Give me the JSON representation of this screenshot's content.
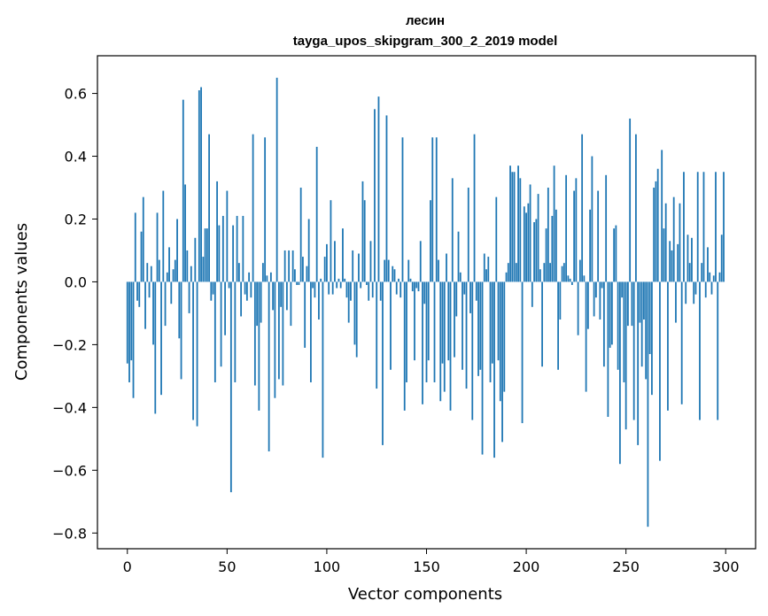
{
  "chart_data": {
    "type": "bar",
    "title": "лесин",
    "subtitle": "tayga_upos_skipgram_300_2_2019 model",
    "xlabel": "Vector components",
    "ylabel": "Components values",
    "xlim": [
      -15,
      315
    ],
    "ylim": [
      -0.85,
      0.72
    ],
    "x_ticks": [
      0,
      50,
      100,
      150,
      200,
      250,
      300
    ],
    "y_ticks": [
      -0.8,
      -0.6,
      -0.4,
      -0.2,
      0.0,
      0.2,
      0.4,
      0.6
    ],
    "bar_color": "#1f77b4",
    "values": [
      -0.26,
      -0.32,
      -0.25,
      -0.37,
      0.22,
      -0.06,
      -0.08,
      0.16,
      0.27,
      -0.15,
      0.06,
      -0.05,
      0.05,
      -0.2,
      -0.42,
      0.22,
      0.07,
      -0.36,
      0.29,
      -0.14,
      0.03,
      0.11,
      -0.07,
      0.04,
      0.07,
      0.2,
      -0.18,
      -0.31,
      0.58,
      0.31,
      0.1,
      -0.1,
      0.05,
      -0.44,
      0.14,
      -0.46,
      0.61,
      0.62,
      0.08,
      0.17,
      0.17,
      0.47,
      -0.06,
      -0.04,
      -0.32,
      0.32,
      0.18,
      -0.27,
      0.21,
      -0.17,
      0.29,
      -0.02,
      -0.67,
      0.18,
      -0.32,
      0.21,
      0.06,
      -0.11,
      0.21,
      -0.04,
      -0.06,
      0.03,
      -0.05,
      0.47,
      -0.33,
      -0.14,
      -0.41,
      -0.13,
      0.06,
      0.46,
      0.02,
      -0.54,
      0.03,
      -0.09,
      -0.37,
      0.65,
      -0.31,
      -0.08,
      -0.33,
      0.1,
      -0.09,
      0.1,
      -0.14,
      0.1,
      0.04,
      -0.01,
      -0.01,
      0.3,
      0.08,
      -0.21,
      0.05,
      0.2,
      -0.32,
      -0.02,
      -0.05,
      0.43,
      -0.12,
      0.01,
      -0.56,
      0.08,
      0.12,
      -0.04,
      0.26,
      -0.04,
      0.13,
      -0.02,
      0.01,
      -0.02,
      0.17,
      0.01,
      -0.05,
      -0.13,
      -0.06,
      0.1,
      -0.2,
      -0.24,
      0.09,
      -0.02,
      0.32,
      0.26,
      -0.01,
      -0.06,
      0.13,
      -0.05,
      0.55,
      -0.34,
      0.59,
      -0.06,
      -0.52,
      0.07,
      0.53,
      0.07,
      -0.28,
      0.05,
      0.04,
      -0.04,
      0.01,
      -0.05,
      0.46,
      -0.41,
      -0.32,
      0.07,
      0.01,
      -0.03,
      -0.25,
      -0.02,
      -0.03,
      0.13,
      -0.39,
      -0.07,
      -0.32,
      -0.25,
      0.26,
      0.46,
      -0.32,
      0.46,
      0.07,
      -0.38,
      -0.26,
      -0.35,
      0.09,
      -0.25,
      -0.41,
      0.33,
      -0.24,
      -0.11,
      0.16,
      0.03,
      -0.28,
      -0.04,
      -0.34,
      0.3,
      -0.1,
      -0.44,
      0.47,
      -0.06,
      -0.3,
      -0.28,
      -0.55,
      0.09,
      0.04,
      0.08,
      -0.32,
      -0.26,
      -0.56,
      0.27,
      -0.25,
      -0.38,
      -0.51,
      -0.35,
      0.03,
      0.06,
      0.37,
      0.35,
      0.35,
      0.06,
      0.37,
      0.33,
      -0.45,
      0.24,
      0.22,
      0.25,
      0.31,
      -0.08,
      0.19,
      0.2,
      0.28,
      0.04,
      -0.27,
      0.06,
      0.17,
      0.3,
      0.06,
      0.21,
      0.37,
      0.23,
      -0.28,
      -0.12,
      0.05,
      0.06,
      0.34,
      0.02,
      0.01,
      -0.01,
      0.29,
      0.33,
      -0.17,
      0.07,
      0.47,
      0.02,
      -0.35,
      -0.15,
      0.23,
      0.4,
      -0.11,
      -0.05,
      0.29,
      -0.12,
      -0.02,
      -0.27,
      0.34,
      -0.43,
      -0.21,
      -0.2,
      0.17,
      0.18,
      -0.28,
      -0.58,
      -0.05,
      -0.32,
      -0.47,
      -0.14,
      0.52,
      -0.14,
      -0.44,
      0.47,
      -0.52,
      -0.13,
      -0.27,
      -0.12,
      -0.31,
      -0.78,
      -0.23,
      -0.36,
      0.3,
      0.32,
      0.36,
      -0.57,
      0.42,
      0.17,
      0.25,
      -0.41,
      0.13,
      0.1,
      0.27,
      -0.13,
      0.12,
      0.25,
      -0.39,
      0.35,
      -0.07,
      0.15,
      0.06,
      0.14,
      -0.07,
      -0.04,
      0.35,
      -0.44,
      0.06,
      0.35,
      -0.05,
      0.11,
      0.03,
      -0.04,
      0.02,
      0.35,
      -0.44,
      0.03,
      0.15,
      0.35
    ]
  }
}
